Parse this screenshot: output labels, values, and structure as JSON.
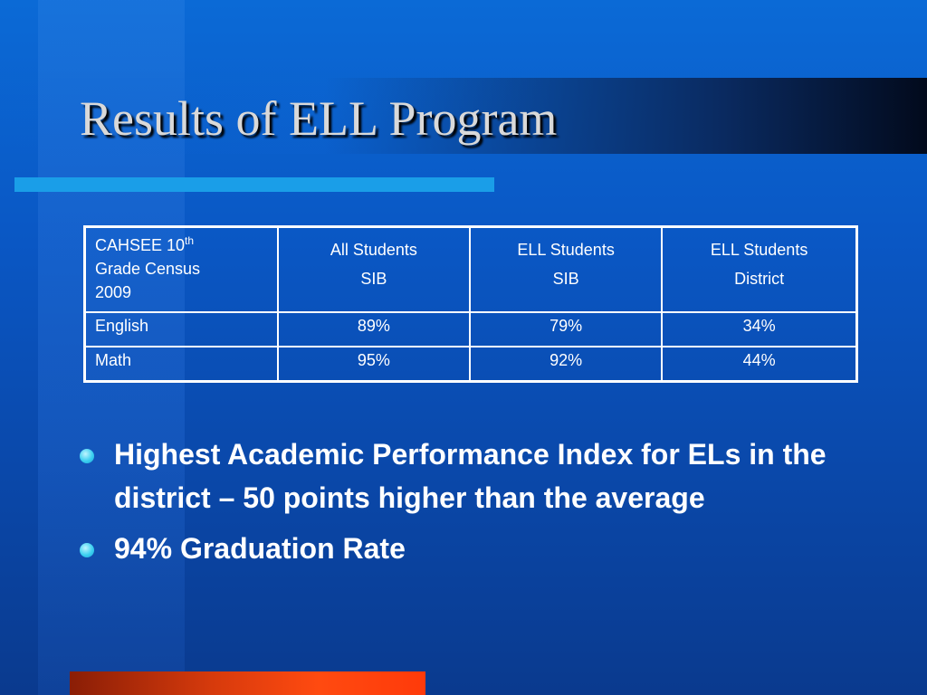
{
  "slide": {
    "title": "Results of ELL Program"
  },
  "table": {
    "header": {
      "col1_line1": "CAHSEE 10",
      "col1_sup": "th",
      "col1_line2": "Grade Census",
      "col1_line3": "2009",
      "col2_line1": "All Students",
      "col2_line2": "SIB",
      "col3_line1": "ELL Students",
      "col3_line2": "SIB",
      "col4_line1": "ELL Students",
      "col4_line2": "District"
    },
    "rows": [
      {
        "label": "English",
        "all_students_sib": "89%",
        "ell_students_sib": "79%",
        "ell_students_district": "34%"
      },
      {
        "label": "Math",
        "all_students_sib": "95%",
        "ell_students_sib": "92%",
        "ell_students_district": "44%"
      }
    ]
  },
  "bullets": [
    "Highest Academic Performance Index for ELs in the district – 50 points higher than the average",
    "94% Graduation Rate"
  ],
  "colors": {
    "background": "#0a57c4",
    "title_text": "#d9d9d9",
    "title_underline": "#1a9ee8",
    "bullet_dot": "#3cd0f0",
    "bottom_accent": "#ff4a10"
  }
}
